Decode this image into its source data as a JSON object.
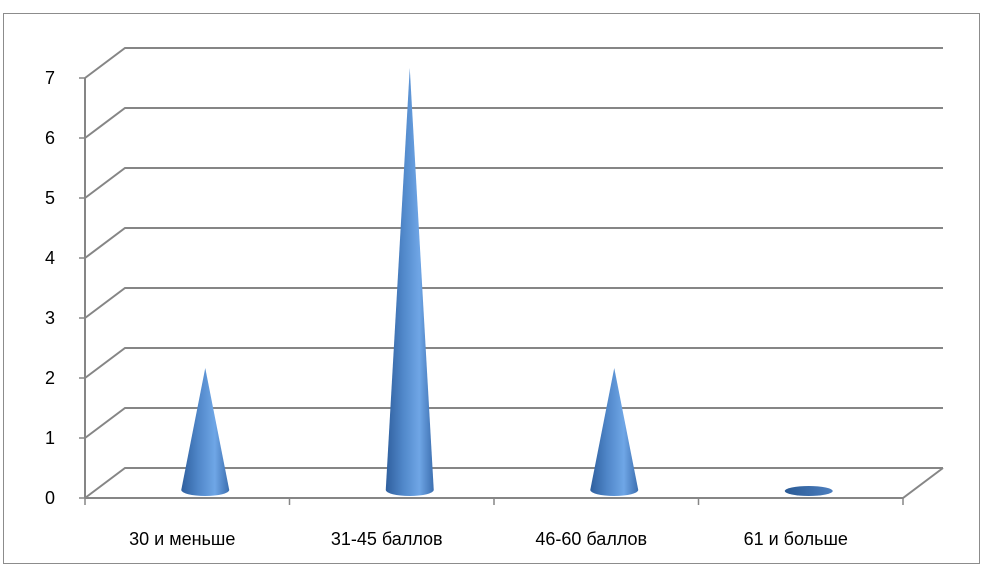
{
  "chart_data": {
    "type": "bar",
    "shape": "cone-3d",
    "categories": [
      "30 и меньше",
      "31-45 баллов",
      "46-60 баллов",
      "61 и больше"
    ],
    "values": [
      2,
      7,
      2,
      0
    ],
    "ylim": [
      0,
      7
    ],
    "yticks": [
      "0",
      "1",
      "2",
      "3",
      "4",
      "5",
      "6",
      "7"
    ],
    "grid": true,
    "legend": "none",
    "colors": {
      "bar": "#4f81bd",
      "grid": "#868686"
    }
  }
}
